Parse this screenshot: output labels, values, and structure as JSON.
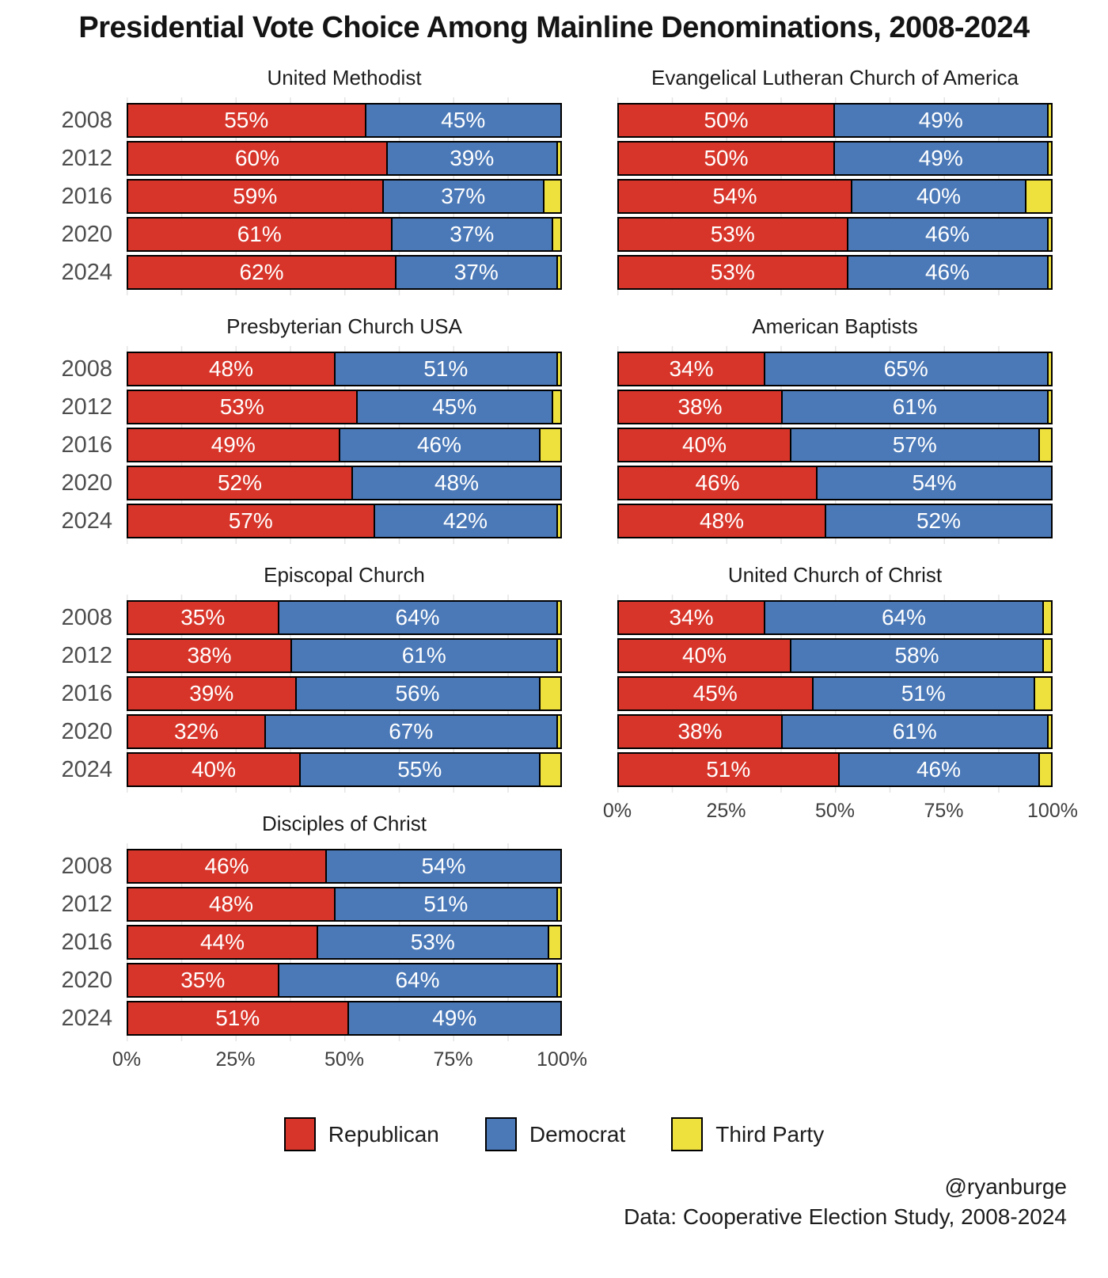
{
  "title": "Presidential Vote Choice Among Mainline Denominations, 2008-2024",
  "colors": {
    "republican": "#d7352a",
    "democrat": "#4b79b7",
    "third_party": "#efe13d",
    "bar_border": "#000000",
    "gridline": "#e4e4e4",
    "year_label": "#4e4e4e",
    "axis_label": "#3e3e3e"
  },
  "legend": [
    {
      "label": "Republican",
      "color_key": "republican"
    },
    {
      "label": "Democrat",
      "color_key": "democrat"
    },
    {
      "label": "Third Party",
      "color_key": "third_party"
    }
  ],
  "footer": {
    "handle": "@ryanburge",
    "source": "Data: Cooperative Election Study, 2008-2024"
  },
  "axis": {
    "ticks": [
      "0%",
      "25%",
      "50%",
      "75%",
      "100%"
    ],
    "tick_positions": [
      0,
      25,
      50,
      75,
      100
    ]
  },
  "chart_data": {
    "type": "bar",
    "stacked": true,
    "orientation": "horizontal",
    "xlim": [
      0,
      100
    ],
    "grid": "vertical-minor-12.5",
    "legend_position": "bottom",
    "categories": [
      "2008",
      "2012",
      "2016",
      "2020",
      "2024"
    ],
    "series_names": [
      "Republican",
      "Democrat",
      "Third Party"
    ],
    "panels": [
      {
        "title": "United Methodist",
        "column": "left",
        "show_years": true,
        "show_axis": false,
        "first_row": true,
        "rows": [
          {
            "year": "2008",
            "republican": 55,
            "democrat": 45,
            "third": 0
          },
          {
            "year": "2012",
            "republican": 60,
            "democrat": 39,
            "third": 1
          },
          {
            "year": "2016",
            "republican": 59,
            "democrat": 37,
            "third": 4
          },
          {
            "year": "2020",
            "republican": 61,
            "democrat": 37,
            "third": 2
          },
          {
            "year": "2024",
            "republican": 62,
            "democrat": 37,
            "third": 1
          }
        ]
      },
      {
        "title": "Evangelical Lutheran Church of America",
        "column": "right",
        "show_years": false,
        "show_axis": false,
        "first_row": true,
        "rows": [
          {
            "year": "2008",
            "republican": 50,
            "democrat": 49,
            "third": 1
          },
          {
            "year": "2012",
            "republican": 50,
            "democrat": 49,
            "third": 1
          },
          {
            "year": "2016",
            "republican": 54,
            "democrat": 40,
            "third": 6
          },
          {
            "year": "2020",
            "republican": 53,
            "democrat": 46,
            "third": 1
          },
          {
            "year": "2024",
            "republican": 53,
            "democrat": 46,
            "third": 1
          }
        ]
      },
      {
        "title": "Presbyterian Church USA",
        "column": "left",
        "show_years": true,
        "show_axis": false,
        "first_row": false,
        "rows": [
          {
            "year": "2008",
            "republican": 48,
            "democrat": 51,
            "third": 1
          },
          {
            "year": "2012",
            "republican": 53,
            "democrat": 45,
            "third": 2
          },
          {
            "year": "2016",
            "republican": 49,
            "democrat": 46,
            "third": 5
          },
          {
            "year": "2020",
            "republican": 52,
            "democrat": 48,
            "third": 0
          },
          {
            "year": "2024",
            "republican": 57,
            "democrat": 42,
            "third": 1
          }
        ]
      },
      {
        "title": "American Baptists",
        "column": "right",
        "show_years": false,
        "show_axis": false,
        "first_row": false,
        "rows": [
          {
            "year": "2008",
            "republican": 34,
            "democrat": 65,
            "third": 1
          },
          {
            "year": "2012",
            "republican": 38,
            "democrat": 61,
            "third": 1
          },
          {
            "year": "2016",
            "republican": 40,
            "democrat": 57,
            "third": 3
          },
          {
            "year": "2020",
            "republican": 46,
            "democrat": 54,
            "third": 0
          },
          {
            "year": "2024",
            "republican": 48,
            "democrat": 52,
            "third": 0
          }
        ]
      },
      {
        "title": "Episcopal Church",
        "column": "left",
        "show_years": true,
        "show_axis": false,
        "first_row": false,
        "rows": [
          {
            "year": "2008",
            "republican": 35,
            "democrat": 64,
            "third": 1
          },
          {
            "year": "2012",
            "republican": 38,
            "democrat": 61,
            "third": 1
          },
          {
            "year": "2016",
            "republican": 39,
            "democrat": 56,
            "third": 5
          },
          {
            "year": "2020",
            "republican": 32,
            "democrat": 67,
            "third": 1
          },
          {
            "year": "2024",
            "republican": 40,
            "democrat": 55,
            "third": 5
          }
        ]
      },
      {
        "title": "United Church of Christ",
        "column": "right",
        "show_years": false,
        "show_axis": true,
        "first_row": false,
        "rows": [
          {
            "year": "2008",
            "republican": 34,
            "democrat": 64,
            "third": 2
          },
          {
            "year": "2012",
            "republican": 40,
            "democrat": 58,
            "third": 2
          },
          {
            "year": "2016",
            "republican": 45,
            "democrat": 51,
            "third": 4
          },
          {
            "year": "2020",
            "republican": 38,
            "democrat": 61,
            "third": 1
          },
          {
            "year": "2024",
            "republican": 51,
            "democrat": 46,
            "third": 3
          }
        ]
      },
      {
        "title": "Disciples of Christ",
        "column": "left",
        "show_years": true,
        "show_axis": true,
        "first_row": false,
        "rows": [
          {
            "year": "2008",
            "republican": 46,
            "democrat": 54,
            "third": 0
          },
          {
            "year": "2012",
            "republican": 48,
            "democrat": 51,
            "third": 1
          },
          {
            "year": "2016",
            "republican": 44,
            "democrat": 53,
            "third": 3
          },
          {
            "year": "2020",
            "republican": 35,
            "democrat": 64,
            "third": 1
          },
          {
            "year": "2024",
            "republican": 51,
            "democrat": 49,
            "third": 0
          }
        ]
      }
    ]
  }
}
